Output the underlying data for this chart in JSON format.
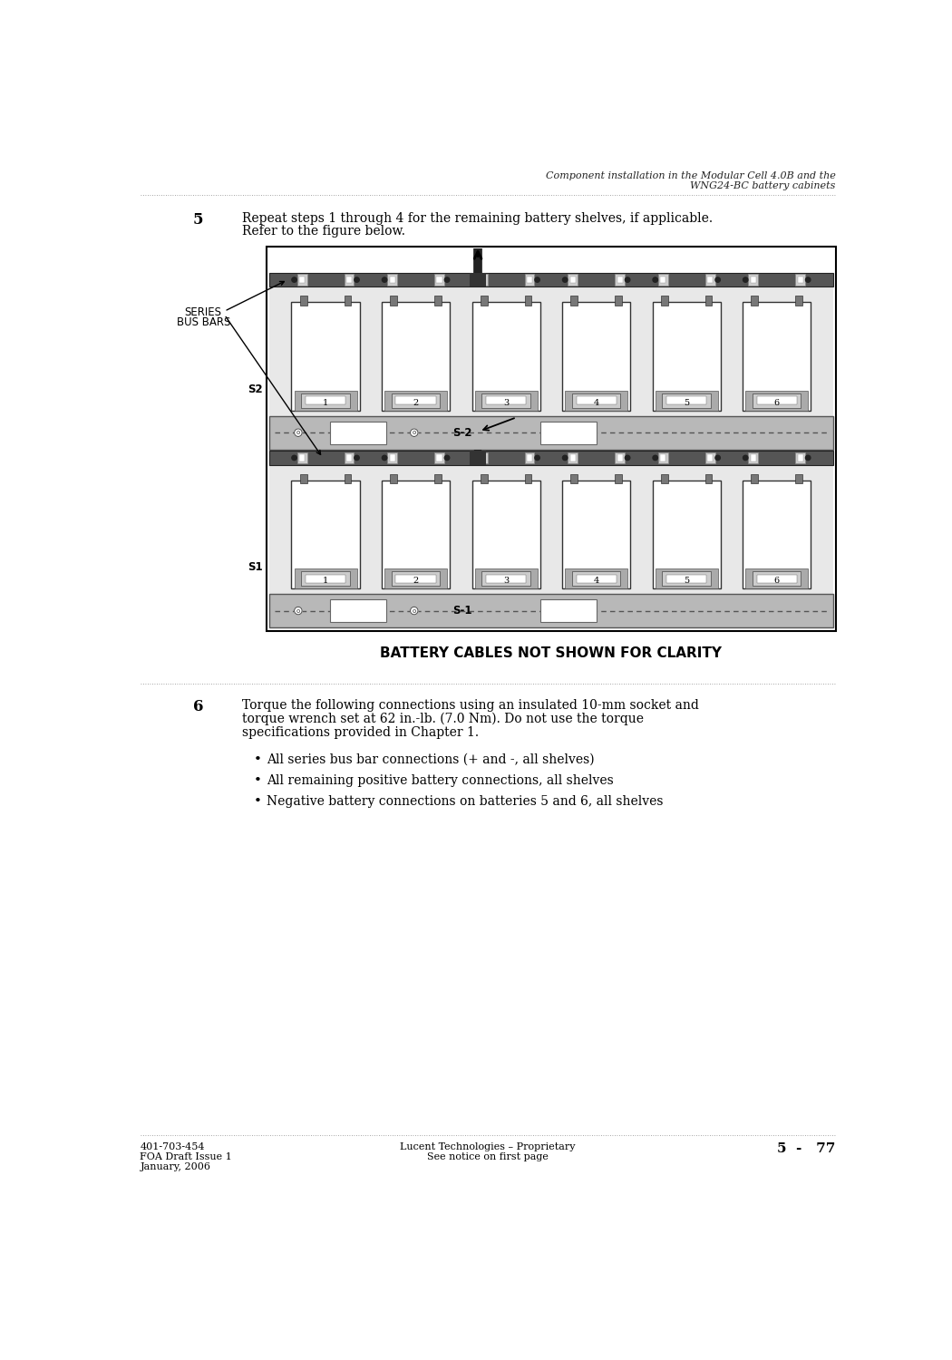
{
  "header_line1": "Component installation in the Modular Cell 4.0B and the",
  "header_line2": "WNG24-BC battery cabinets",
  "step5_num": "5",
  "step5_text_line1": "Repeat steps 1 through 4 for the remaining battery shelves, if applicable.",
  "step5_text_line2": "Refer to the figure below.",
  "series_bus_bars_label_line1": "SERIES",
  "series_bus_bars_label_line2": "BUS BARS",
  "caption": "BATTERY CABLES NOT SHOWN FOR CLARITY",
  "step6_num": "6",
  "step6_text_line1": "Torque the following connections using an insulated 10-mm socket and",
  "step6_text_line2": "torque wrench set at 62 in.-lb. (7.0 Nm). Do not use the torque",
  "step6_text_line3": "specifications provided in Chapter 1.",
  "bullet1": "All series bus bar connections (+ and -, all shelves)",
  "bullet2": "All remaining positive battery connections, all shelves",
  "bullet3": "Negative battery connections on batteries 5 and 6, all shelves",
  "footer_left1": "401-703-454",
  "footer_left2": "FOA Draft Issue 1",
  "footer_left3": "January, 2006",
  "footer_center1": "Lucent Technologies – Proprietary",
  "footer_center2": "See notice on first page",
  "footer_right": "5  -   77",
  "bg_color": "#ffffff"
}
